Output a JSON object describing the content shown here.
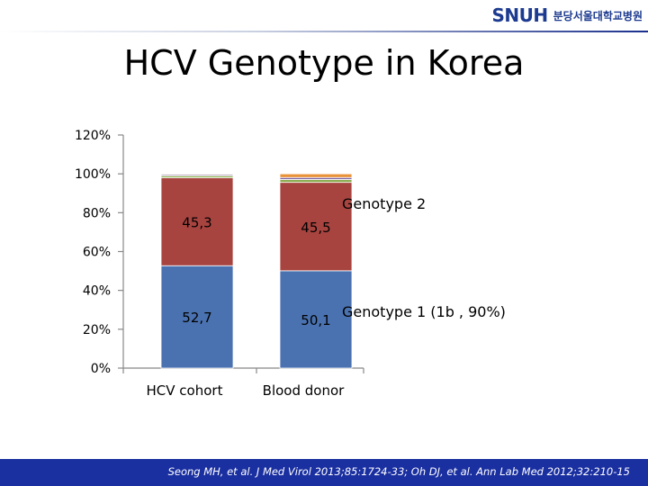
{
  "header": {
    "logo_mark": "SNUH",
    "logo_text": "분당서울대학교병원"
  },
  "title": "HCV Genotype in Korea",
  "chart_data": {
    "type": "bar",
    "stacked": true,
    "categories": [
      "HCV cohort",
      "Blood donor"
    ],
    "series": [
      {
        "values": [
          52.7,
          50.1
        ],
        "labels": [
          "52,7",
          "50,1"
        ],
        "color": "#4a72b0"
      },
      {
        "values": [
          45.3,
          45.5
        ],
        "labels": [
          "45,3",
          "45,5"
        ],
        "color": "#a84440"
      },
      {
        "values": [
          1.0,
          1.5
        ],
        "color": "#8aab4e"
      },
      {
        "values": [
          0.6,
          1.0
        ],
        "color": "#7b5fa3"
      },
      {
        "values": [
          0.4,
          1.9
        ],
        "color": "#e8923a"
      }
    ],
    "yticks": [
      "0%",
      "20%",
      "40%",
      "60%",
      "80%",
      "100%",
      "120%"
    ],
    "ylim": [
      0,
      120
    ],
    "grid": false,
    "annotations": [
      "Genotype 2",
      "Genotype 1 (1b , 90%)"
    ]
  },
  "footer": {
    "citation": "Seong MH, et al. J Med Virol 2013;85:1724-33; Oh DJ, et al.  Ann Lab Med 2012;32:210-15"
  }
}
